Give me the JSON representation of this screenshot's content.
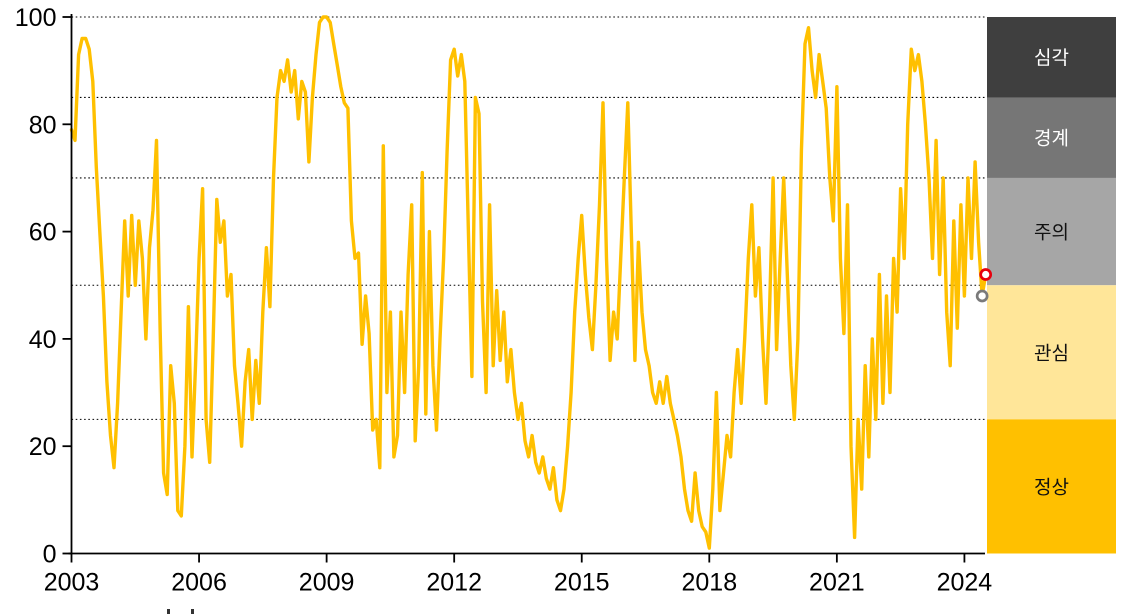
{
  "chart_data": {
    "type": "line",
    "title": "",
    "background": "#FFFFFF",
    "axis_color": "#000000",
    "grid_style": "dotted",
    "gridlines_at": [
      25,
      50,
      70,
      85,
      100
    ],
    "ylim": [
      0,
      100
    ],
    "y_ticks": [
      "0",
      "20",
      "40",
      "60",
      "80",
      "100"
    ],
    "y_tick_values": [
      0,
      20,
      40,
      60,
      80,
      100
    ],
    "x_tick_labels": [
      "2003",
      "2006",
      "2009",
      "2012",
      "2015",
      "2018",
      "2021",
      "2024"
    ],
    "x_tick_years": [
      2003,
      2006,
      2009,
      2012,
      2015,
      2018,
      2021,
      2024
    ],
    "series": {
      "color": "#FFC000",
      "frequency": "monthly",
      "start_year": 2003,
      "start_month": 1,
      "values_by_year": [
        {
          "year": 2003,
          "values": [
            79,
            77,
            93,
            96,
            96,
            94,
            88,
            72,
            60,
            48,
            32,
            22
          ]
        },
        {
          "year": 2004,
          "values": [
            16,
            28,
            45,
            62,
            48,
            63,
            50,
            62,
            55,
            40,
            57,
            64
          ]
        },
        {
          "year": 2005,
          "values": [
            77,
            42,
            15,
            11,
            35,
            28,
            8,
            7,
            20,
            46,
            18,
            35
          ]
        },
        {
          "year": 2006,
          "values": [
            55,
            68,
            25,
            17,
            40,
            66,
            58,
            62,
            48,
            52,
            35,
            28
          ]
        },
        {
          "year": 2007,
          "values": [
            20,
            32,
            38,
            25,
            36,
            28,
            45,
            57,
            46,
            70,
            85,
            90
          ]
        },
        {
          "year": 2008,
          "values": [
            88,
            92,
            86,
            90,
            81,
            88,
            86,
            73,
            85,
            93,
            99,
            100
          ]
        },
        {
          "year": 2009,
          "values": [
            100,
            99,
            95,
            91,
            87,
            84,
            83,
            62,
            55,
            56,
            39,
            48
          ]
        },
        {
          "year": 2010,
          "values": [
            41,
            23,
            25,
            16,
            76,
            30,
            45,
            18,
            22,
            45,
            30,
            52
          ]
        },
        {
          "year": 2011,
          "values": [
            65,
            21,
            35,
            71,
            26,
            60,
            35,
            23,
            40,
            55,
            75,
            92
          ]
        },
        {
          "year": 2012,
          "values": [
            94,
            89,
            93,
            88,
            60,
            33,
            85,
            82,
            47,
            30,
            65,
            35
          ]
        },
        {
          "year": 2013,
          "values": [
            49,
            36,
            45,
            32,
            38,
            30,
            25,
            28,
            21,
            18,
            22,
            17
          ]
        },
        {
          "year": 2014,
          "values": [
            15,
            18,
            14,
            12,
            16,
            10,
            8,
            12,
            20,
            30,
            45,
            55
          ]
        },
        {
          "year": 2015,
          "values": [
            63,
            52,
            44,
            38,
            50,
            65,
            84,
            55,
            36,
            45,
            40,
            55
          ]
        },
        {
          "year": 2016,
          "values": [
            70,
            84,
            60,
            36,
            58,
            45,
            38,
            35,
            30,
            28,
            32,
            28
          ]
        },
        {
          "year": 2017,
          "values": [
            33,
            28,
            25,
            22,
            18,
            12,
            8,
            6,
            15,
            8,
            5,
            4
          ]
        },
        {
          "year": 2018,
          "values": [
            1,
            12,
            30,
            8,
            15,
            22,
            18,
            30,
            38,
            28,
            40,
            55
          ]
        },
        {
          "year": 2019,
          "values": [
            65,
            48,
            57,
            40,
            28,
            45,
            70,
            38,
            55,
            70,
            52,
            35
          ]
        },
        {
          "year": 2020,
          "values": [
            25,
            40,
            75,
            95,
            98,
            90,
            85,
            93,
            88,
            83,
            70,
            62
          ]
        },
        {
          "year": 2021,
          "values": [
            87,
            55,
            41,
            65,
            20,
            3,
            25,
            12,
            35,
            18,
            40,
            25
          ]
        },
        {
          "year": 2022,
          "values": [
            52,
            28,
            48,
            30,
            55,
            45,
            68,
            55,
            80,
            94,
            90,
            93
          ]
        },
        {
          "year": 2023,
          "values": [
            88,
            80,
            70,
            55,
            77,
            52,
            70,
            45,
            35,
            62,
            42,
            65
          ]
        },
        {
          "year": 2024,
          "values": [
            48,
            70,
            55,
            73,
            58,
            48,
            52
          ]
        }
      ]
    },
    "end_markers": [
      {
        "key": "previous",
        "value": 48,
        "color": "#7A7A7A",
        "months_from_end": 1
      },
      {
        "key": "latest",
        "value": 52,
        "color": "#E8000D",
        "months_from_end": 0
      }
    ],
    "risk_zones": [
      {
        "key": "severe",
        "label": "심각",
        "from": 85,
        "to": 100,
        "color": "#3F3F3F",
        "text_color": "#FFFFFF"
      },
      {
        "key": "alert",
        "label": "경계",
        "from": 70,
        "to": 85,
        "color": "#767676",
        "text_color": "#FFFFFF"
      },
      {
        "key": "caution",
        "label": "주의",
        "from": 50,
        "to": 70,
        "color": "#A6A6A6",
        "text_color": "#111111"
      },
      {
        "key": "attention",
        "label": "관심",
        "from": 25,
        "to": 50,
        "color": "#FFE699",
        "text_color": "#111111"
      },
      {
        "key": "normal",
        "label": "정상",
        "from": 0,
        "to": 25,
        "color": "#FFC000",
        "text_color": "#111111"
      }
    ],
    "legend_position": "right-band"
  }
}
